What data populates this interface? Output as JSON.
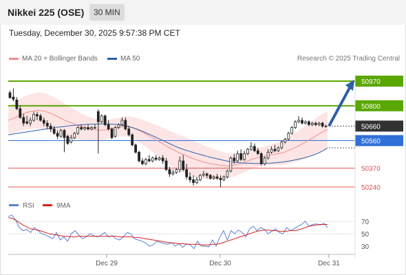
{
  "header": {
    "title": "Nikkei 225 (OSE)",
    "timeframe": "30 MIN"
  },
  "datetime": "Tuesday, December 30, 2025 9:57:38 PM CET",
  "legend": {
    "ma20_label": "MA 20 + Bollinger Bands",
    "ma50_label": "MA 50",
    "credit": "Research © 2025 Trading Central"
  },
  "colors": {
    "ma20": "#f28a8a",
    "ma50": "#2a5fa8",
    "resistance": "#5aa700",
    "support": "#e05050",
    "current": "#333333",
    "pivot": "#2f6fd8",
    "arrow": "#2a5fa8",
    "rsi": "#5b7fd6",
    "rsi_ma": "#d62020",
    "up": "#ffffff",
    "down": "#222222"
  },
  "chart_data": [
    {
      "type": "candlestick",
      "title": "",
      "ylim": [
        50200,
        51000
      ],
      "x_ticks": [
        "Dec 29",
        "Dec 30",
        "Dec 31"
      ],
      "levels": [
        {
          "label": "50970",
          "value": 50970,
          "kind": "resistance"
        },
        {
          "label": "50800",
          "value": 50800,
          "kind": "resistance"
        },
        {
          "label": "50660",
          "value": 50660,
          "kind": "current"
        },
        {
          "label": "50560",
          "value": 50560,
          "kind": "pivot"
        },
        {
          "label": "50370",
          "value": 50370,
          "kind": "support"
        },
        {
          "label": "50240",
          "value": 50240,
          "kind": "support"
        }
      ],
      "projection": {
        "from": 50660,
        "to": 50970
      },
      "series": [
        {
          "name": "MA 20 + Bollinger Bands",
          "values": [
            50700,
            50710,
            50720,
            50735,
            50745,
            50755,
            50760,
            50765,
            50768,
            50765,
            50760,
            50750,
            50740,
            50728,
            50715,
            50700,
            50690,
            50680,
            50670,
            50660,
            50652,
            50645,
            50640,
            50635,
            50632,
            50632,
            50634,
            50640,
            50646,
            50650,
            50655,
            50658,
            50656,
            50650,
            50640,
            50628,
            50615,
            50600,
            50585,
            50570,
            50555,
            50540,
            50525,
            50510,
            50495,
            50482,
            50470,
            50460,
            50448,
            50438,
            50428,
            50420,
            50412,
            50406,
            50400,
            50396,
            50392,
            50388,
            50386,
            50385,
            50390,
            50395,
            50403,
            50412,
            50422,
            50432,
            50440,
            50446,
            50452,
            50458,
            50462,
            50466,
            50470,
            50476,
            50485,
            50496,
            50508,
            50520,
            50534,
            50548,
            50562,
            50578,
            50594,
            50610,
            50625,
            50638
          ]
        },
        {
          "name": "MA 50",
          "values": [
            50600,
            50604,
            50608,
            50612,
            50616,
            50620,
            50624,
            50628,
            50632,
            50636,
            50640,
            50644,
            50648,
            50652,
            50655,
            50658,
            50661,
            50664,
            50666,
            50668,
            50670,
            50672,
            50673,
            50674,
            50675,
            50675,
            50675,
            50674,
            50673,
            50671,
            50668,
            50664,
            50658,
            50650,
            50642,
            50632,
            50622,
            50610,
            50598,
            50586,
            50574,
            50562,
            50550,
            50538,
            50526,
            50515,
            50505,
            50496,
            50488,
            50480,
            50472,
            50465,
            50458,
            50450,
            50444,
            50438,
            50432,
            50426,
            50420,
            50415,
            50411,
            50408,
            50406,
            50405,
            50404,
            50403,
            50402,
            50402,
            50403,
            50404,
            50405,
            50407,
            50409,
            50412,
            50416,
            50420,
            50425,
            50430,
            50436,
            50442,
            50450,
            50458,
            50468,
            50480,
            50494,
            50510
          ]
        }
      ],
      "candles": [
        [
          50890,
          50905,
          50855,
          50850
        ],
        [
          50860,
          50920,
          50845,
          50830
        ],
        [
          50840,
          50860,
          50780,
          50770
        ],
        [
          50780,
          50800,
          50720,
          50710
        ],
        [
          50720,
          50745,
          50680,
          50660
        ],
        [
          50690,
          50730,
          50680,
          50670
        ],
        [
          50680,
          50720,
          50700,
          50660
        ],
        [
          50700,
          50760,
          50740,
          50690
        ],
        [
          50740,
          50760,
          50730,
          50700
        ],
        [
          50730,
          50745,
          50700,
          50690
        ],
        [
          50700,
          50720,
          50680,
          50660
        ],
        [
          50680,
          50700,
          50660,
          50640
        ],
        [
          50660,
          50680,
          50640,
          50620
        ],
        [
          50640,
          50660,
          50610,
          50600
        ],
        [
          50610,
          50630,
          50590,
          50570
        ],
        [
          50590,
          50640,
          50630,
          50580
        ],
        [
          50630,
          50640,
          50580,
          50480
        ],
        [
          50590,
          50600,
          50540,
          50530
        ],
        [
          50550,
          50600,
          50580,
          50540
        ],
        [
          50580,
          50620,
          50610,
          50570
        ],
        [
          50610,
          50660,
          50650,
          50600
        ],
        [
          50650,
          50670,
          50640,
          50630
        ],
        [
          50640,
          50660,
          50650,
          50630
        ],
        [
          50650,
          50670,
          50640,
          50630
        ],
        [
          50640,
          50660,
          50650,
          50630
        ],
        [
          50650,
          50670,
          50650,
          50640
        ],
        [
          50760,
          50775,
          50690,
          50470
        ],
        [
          50690,
          50740,
          50730,
          50680
        ],
        [
          50730,
          50740,
          50670,
          50660
        ],
        [
          50670,
          50700,
          50640,
          50630
        ],
        [
          50640,
          50650,
          50580,
          50570
        ],
        [
          50590,
          50660,
          50650,
          50580
        ],
        [
          50650,
          50680,
          50670,
          50640
        ],
        [
          50670,
          50720,
          50700,
          50660
        ],
        [
          50700,
          50720,
          50640,
          50630
        ],
        [
          50640,
          50660,
          50600,
          50590
        ],
        [
          50600,
          50610,
          50530,
          50520
        ],
        [
          50530,
          50540,
          50480,
          50470
        ],
        [
          50480,
          50490,
          50420,
          50410
        ],
        [
          50420,
          50440,
          50400,
          50390
        ],
        [
          50400,
          50440,
          50430,
          50390
        ],
        [
          50430,
          50460,
          50420,
          50410
        ],
        [
          50420,
          50450,
          50440,
          50410
        ],
        [
          50440,
          50460,
          50430,
          50420
        ],
        [
          50430,
          50450,
          50440,
          50420
        ],
        [
          50440,
          50460,
          50420,
          50400
        ],
        [
          50420,
          50440,
          50360,
          50350
        ],
        [
          50360,
          50380,
          50330,
          50310
        ],
        [
          50330,
          50360,
          50340,
          50320
        ],
        [
          50340,
          50370,
          50360,
          50330
        ],
        [
          50360,
          50450,
          50420,
          50340
        ],
        [
          50420,
          50460,
          50360,
          50350
        ],
        [
          50360,
          50400,
          50310,
          50290
        ],
        [
          50310,
          50340,
          50290,
          50270
        ],
        [
          50290,
          50320,
          50270,
          50250
        ],
        [
          50270,
          50310,
          50290,
          50260
        ],
        [
          50290,
          50330,
          50320,
          50280
        ],
        [
          50320,
          50350,
          50330,
          50310
        ],
        [
          50330,
          50340,
          50320,
          50300
        ],
        [
          50320,
          50330,
          50300,
          50290
        ],
        [
          50300,
          50320,
          50310,
          50290
        ],
        [
          50310,
          50330,
          50300,
          50290
        ],
        [
          50300,
          50320,
          50290,
          50240
        ],
        [
          50290,
          50320,
          50310,
          50280
        ],
        [
          50310,
          50360,
          50350,
          50300
        ],
        [
          50350,
          50450,
          50440,
          50340
        ],
        [
          50440,
          50470,
          50420,
          50400
        ],
        [
          50420,
          50490,
          50470,
          50410
        ],
        [
          50470,
          50500,
          50430,
          50420
        ],
        [
          50430,
          50490,
          50470,
          50420
        ],
        [
          50470,
          50510,
          50500,
          50460
        ],
        [
          50500,
          50550,
          50520,
          50490
        ],
        [
          50520,
          50540,
          50490,
          50480
        ],
        [
          50490,
          50510,
          50470,
          50460
        ],
        [
          50470,
          50480,
          50400,
          50390
        ],
        [
          50400,
          50450,
          50440,
          50390
        ],
        [
          50440,
          50500,
          50480,
          50430
        ],
        [
          50480,
          50520,
          50500,
          50470
        ],
        [
          50500,
          50530,
          50490,
          50480
        ],
        [
          50490,
          50520,
          50510,
          50480
        ],
        [
          50510,
          50560,
          50550,
          50500
        ],
        [
          50550,
          50580,
          50570,
          50540
        ],
        [
          50570,
          50620,
          50610,
          50560
        ],
        [
          50610,
          50660,
          50650,
          50600
        ],
        [
          50650,
          50700,
          50690,
          50640
        ],
        [
          50690,
          50730,
          50700,
          50680
        ],
        [
          50700,
          50720,
          50680,
          50670
        ],
        [
          50680,
          50700,
          50690,
          50670
        ],
        [
          50690,
          50700,
          50670,
          50660
        ],
        [
          50670,
          50690,
          50680,
          50660
        ],
        [
          50680,
          50690,
          50670,
          50660
        ],
        [
          50670,
          50690,
          50680,
          50660
        ],
        [
          50680,
          50690,
          50660,
          50650
        ],
        [
          50660,
          50670,
          50660,
          50650
        ]
      ]
    },
    {
      "type": "line",
      "title": "",
      "ylim": [
        20,
        90
      ],
      "y_ticks": [
        70,
        50,
        30
      ],
      "series": [
        {
          "name": "RSI",
          "values": [
            78,
            80,
            72,
            60,
            55,
            57,
            52,
            60,
            55,
            50,
            48,
            45,
            42,
            52,
            40,
            45,
            38,
            50,
            55,
            48,
            42,
            45,
            50,
            47,
            45,
            48,
            52,
            45,
            47,
            42,
            40,
            45,
            52,
            50,
            42,
            40,
            38,
            35,
            30,
            32,
            38,
            36,
            34,
            33,
            36,
            30,
            34,
            28,
            34,
            32,
            26,
            38,
            30,
            30,
            29,
            40,
            30,
            45,
            55,
            40,
            55,
            50,
            56,
            52,
            45,
            58,
            62,
            55,
            60,
            57,
            50,
            54,
            58,
            52,
            50,
            60,
            55,
            58,
            62,
            65,
            70,
            62,
            65,
            66,
            64,
            67,
            60
          ]
        },
        {
          "name": "9MA",
          "values": [
            76,
            75,
            72,
            68,
            64,
            61,
            58,
            57,
            56,
            54,
            52,
            50,
            49,
            48,
            47,
            46,
            46,
            45,
            45,
            46,
            46,
            46,
            46,
            46,
            46,
            46,
            46,
            46,
            46,
            46,
            45,
            45,
            45,
            45,
            44,
            44,
            43,
            42,
            41,
            40,
            39,
            38,
            37,
            36,
            35,
            35,
            34,
            34,
            33,
            33,
            33,
            33,
            32,
            32,
            32,
            33,
            33,
            34,
            36,
            38,
            40,
            42,
            44,
            46,
            48,
            50,
            52,
            54,
            55,
            56,
            56,
            55,
            55,
            54,
            54,
            54,
            55,
            55,
            56,
            58,
            60,
            62,
            63,
            64,
            65,
            65,
            65
          ]
        }
      ]
    }
  ]
}
